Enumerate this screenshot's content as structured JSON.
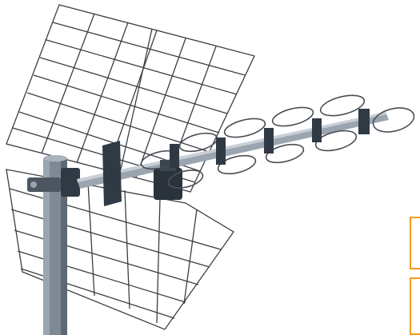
{
  "image": {
    "subject": "outdoor-tv-antenna",
    "colors": {
      "background": "#ffffff",
      "mast": "#7d8a96",
      "mast_shadow": "#5d6873",
      "boom": "#9aa5af",
      "grid_wire": "#3a3f44",
      "director_plastic": "#2f3a45",
      "loop_wire": "#4a4f55",
      "accent_frame": "#f39a1e"
    }
  },
  "edge_boxes": {
    "a": "",
    "b": ""
  }
}
